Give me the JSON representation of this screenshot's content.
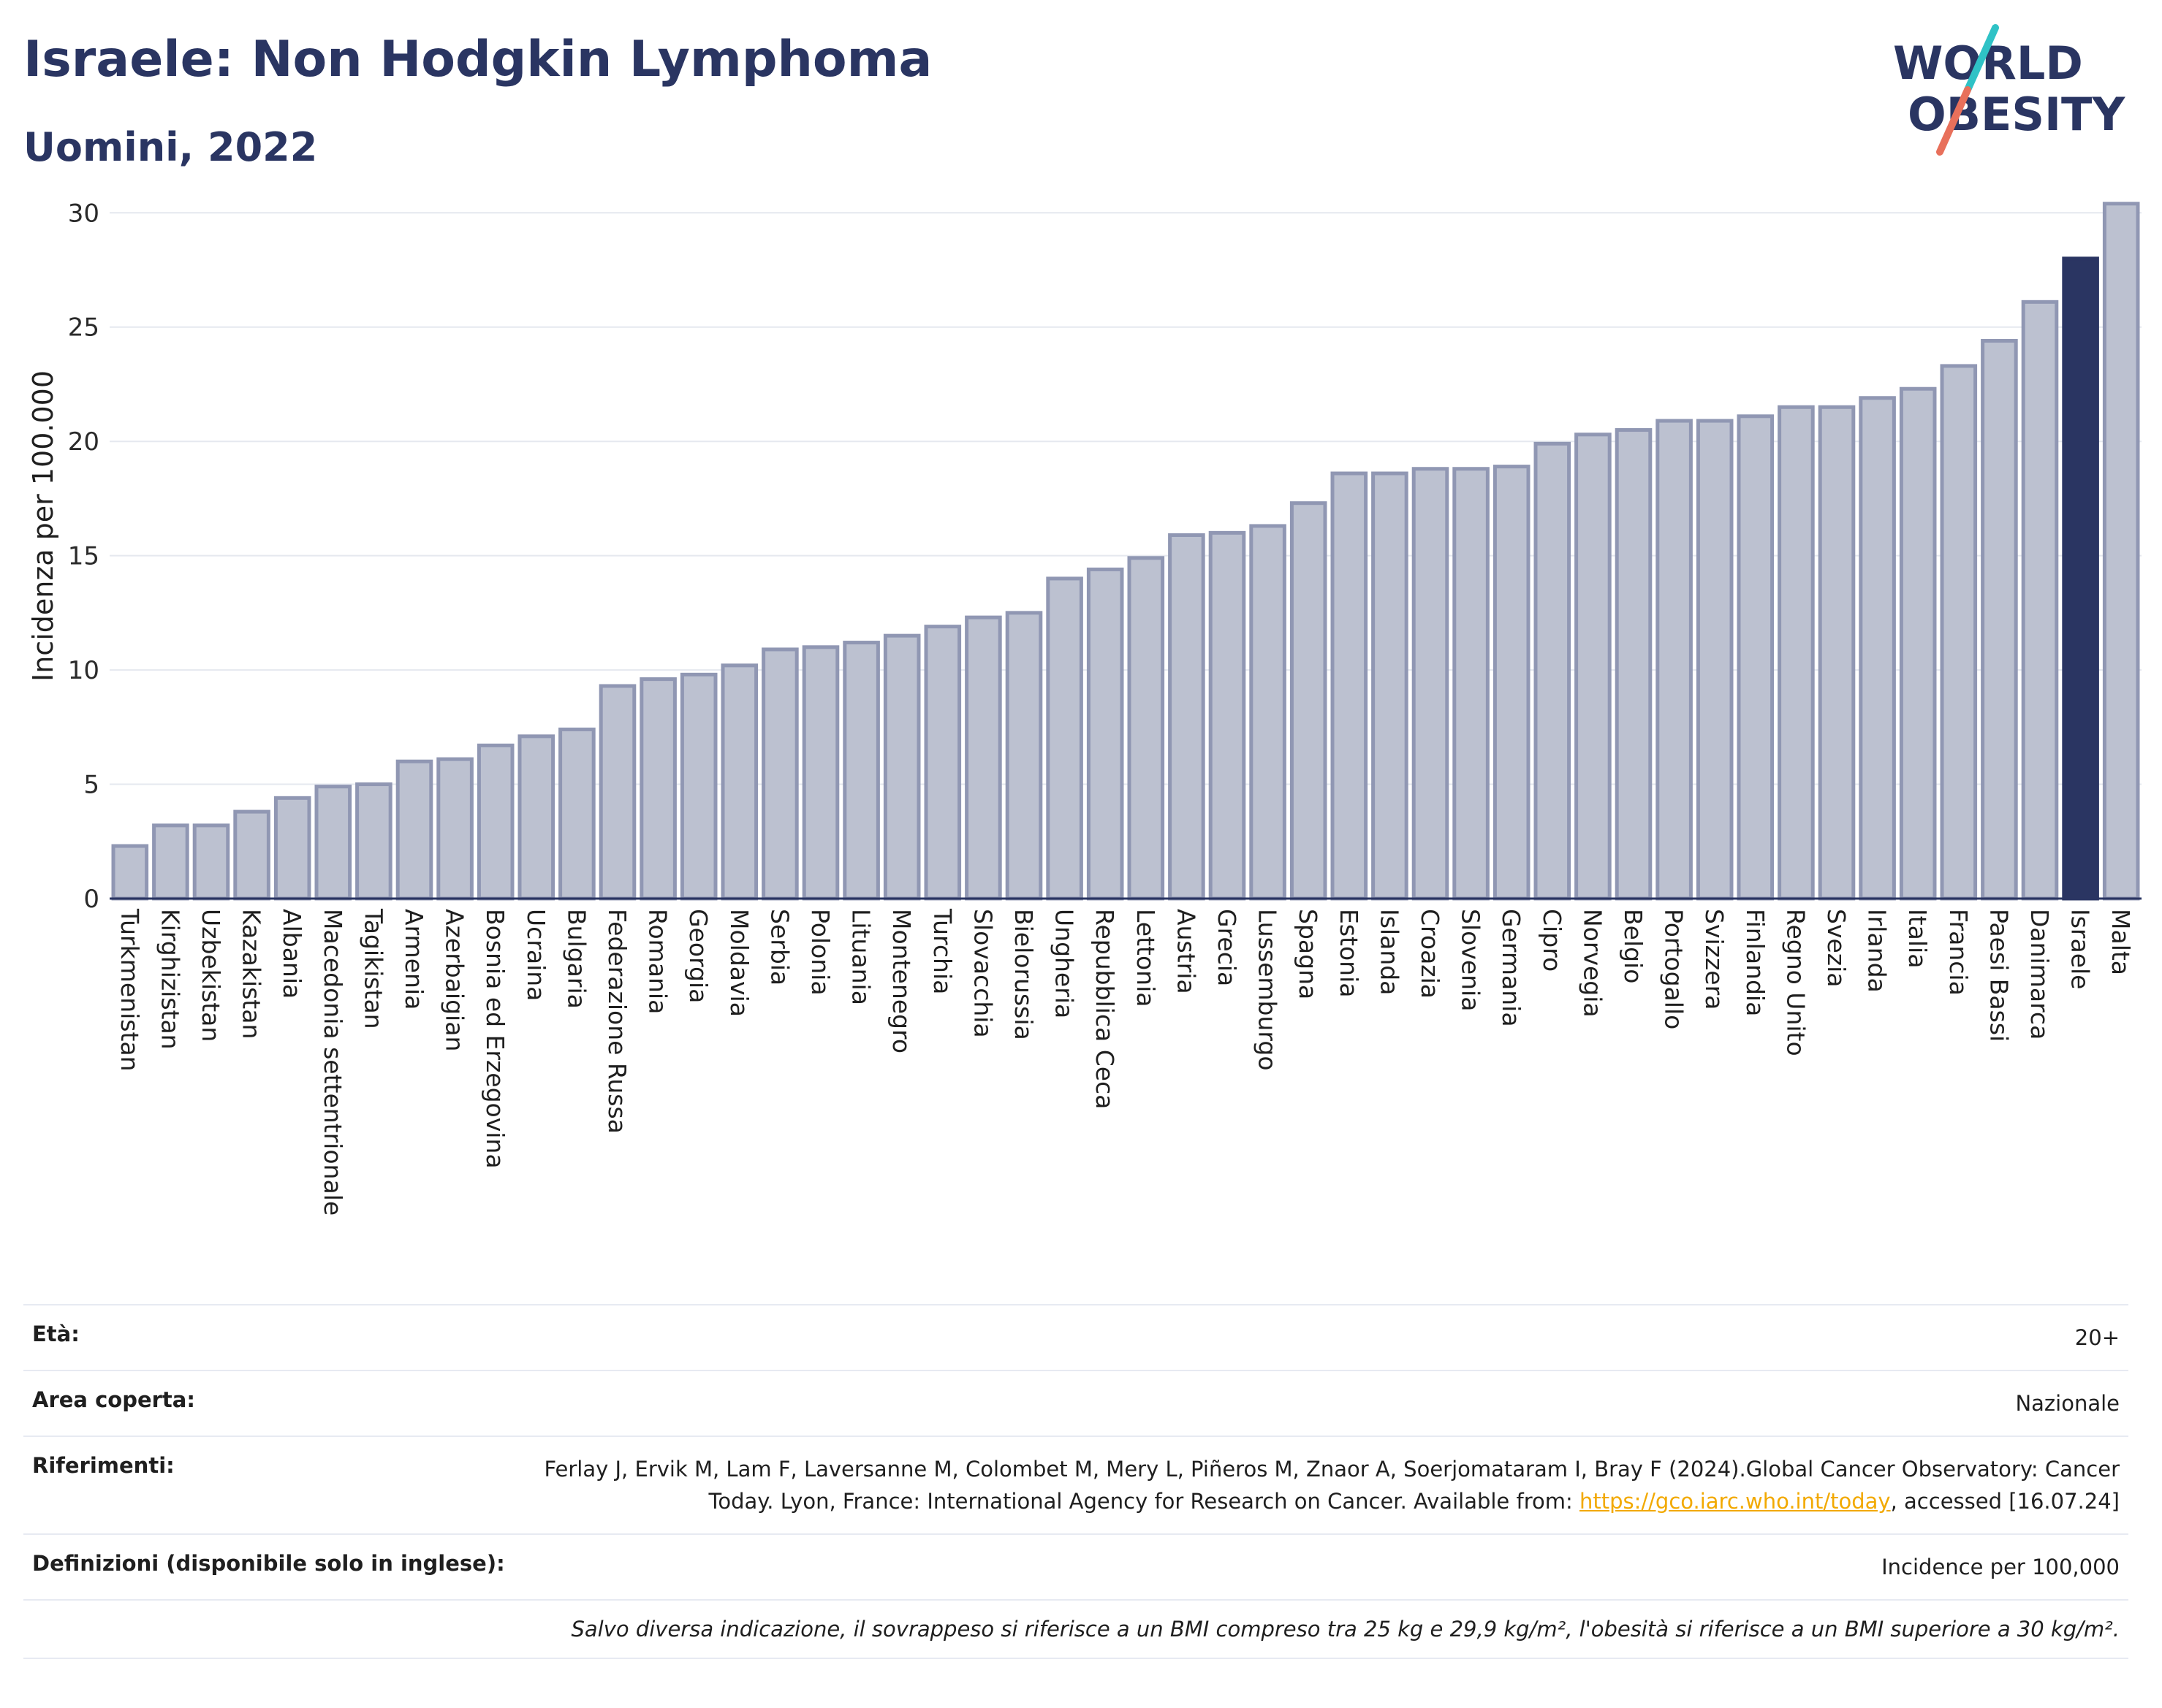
{
  "header": {
    "title": "Israele: Non Hodgkin Lymphoma",
    "subtitle": "Uomini, 2022",
    "logo_line1": "WORLD",
    "logo_line2": "OBESITY"
  },
  "colors": {
    "bar": "#bcc1d0",
    "bar_edge": "#9097b3",
    "highlight": "#2a3562",
    "logo_accent1": "#2fc2c6",
    "logo_accent2": "#e8705b"
  },
  "chart_data": {
    "type": "bar",
    "title": "Israele: Non Hodgkin Lymphoma",
    "subtitle": "Uomini, 2022",
    "xlabel": "",
    "ylabel": "Incidenza per 100.000",
    "ylim": [
      0,
      31
    ],
    "yticks": [
      0,
      5,
      10,
      15,
      20,
      25,
      30
    ],
    "grid": true,
    "highlight": "Israele",
    "categories": [
      "Turkmenistan",
      "Kirghizistan",
      "Uzbekistan",
      "Kazakistan",
      "Albania",
      "Macedonia settentrionale",
      "Tagikistan",
      "Armenia",
      "Azerbaigian",
      "Bosnia ed Erzegovina",
      "Ucraina",
      "Bulgaria",
      "Federazione Russa",
      "Romania",
      "Georgia",
      "Moldavia",
      "Serbia",
      "Polonia",
      "Lituania",
      "Montenegro",
      "Turchia",
      "Slovacchia",
      "Bielorussia",
      "Ungheria",
      "Repubblica Ceca",
      "Lettonia",
      "Austria",
      "Grecia",
      "Lussemburgo",
      "Spagna",
      "Estonia",
      "Islanda",
      "Croazia",
      "Slovenia",
      "Germania",
      "Cipro",
      "Norvegia",
      "Belgio",
      "Portogallo",
      "Svizzera",
      "Finlandia",
      "Regno Unito",
      "Svezia",
      "Irlanda",
      "Italia",
      "Francia",
      "Paesi Bassi",
      "Danimarca",
      "Israele",
      "Malta"
    ],
    "values": [
      2.3,
      3.2,
      3.2,
      3.8,
      4.4,
      4.9,
      5.0,
      6.0,
      6.1,
      6.7,
      7.1,
      7.4,
      9.3,
      9.6,
      9.8,
      10.2,
      10.9,
      11.0,
      11.2,
      11.5,
      11.9,
      12.3,
      12.5,
      14.0,
      14.4,
      14.9,
      15.9,
      16.0,
      16.3,
      17.3,
      18.6,
      18.6,
      18.8,
      18.8,
      18.9,
      19.9,
      20.3,
      20.5,
      20.9,
      20.9,
      21.1,
      21.5,
      21.5,
      21.9,
      22.3,
      23.3,
      24.4,
      26.1,
      28.0,
      30.4
    ]
  },
  "meta": {
    "age_label": "Età:",
    "age_value": "20+",
    "area_label": "Area coperta:",
    "area_value": "Nazionale",
    "ref_label": "Riferimenti:",
    "ref_text_before": "Ferlay J, Ervik M, Lam F, Laversanne M, Colombet M, Mery L, Piñeros M, Znaor A, Soerjomataram I, Bray F (2024).Global Cancer Observatory: Cancer Today. Lyon, France: International Agency for Research on Cancer. Available from: ",
    "ref_link": "https://gco.iarc.who.int/today",
    "ref_text_after": ", accessed [16.07.24]",
    "def_label": "Definizioni (disponibile solo in inglese):",
    "def_value": "Incidence per 100,000",
    "note": "Salvo diversa indicazione, il sovrappeso si riferisce a un BMI compreso tra 25 kg e 29,9 kg/m², l'obesità si riferisce a un BMI superiore a 30 kg/m²."
  }
}
